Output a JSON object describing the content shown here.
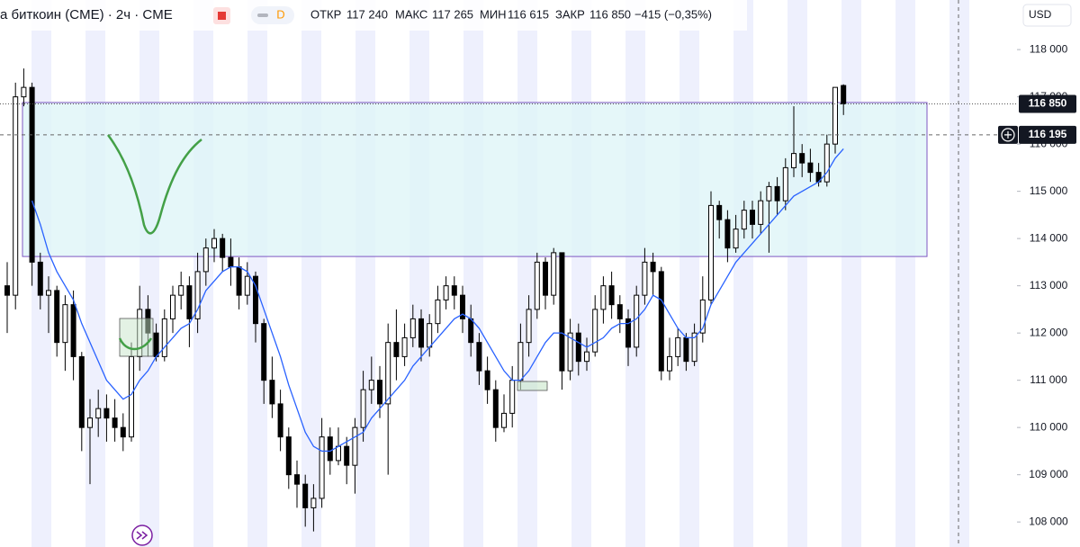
{
  "chart_data": {
    "type": "candlestick",
    "title": "а биткоин (CME) · 2ч · CME",
    "badge": "D",
    "currency": "USD",
    "legend": {
      "open_label": "ОТКР",
      "open": {
        "value": 117240,
        "label": "117 240"
      },
      "high_label": "МАКС",
      "high": {
        "value": 117265,
        "label": "117 265"
      },
      "low_label": "МИН",
      "low": {
        "value": 116615,
        "label": "116 615"
      },
      "close_label": "ЗАКР",
      "close": {
        "value": 116850,
        "label": "116 850"
      },
      "change": {
        "value": -415,
        "label": "−415 (−0,35%)"
      }
    },
    "last_price": {
      "value": 116850,
      "label": "116 850"
    },
    "crosshair_price": {
      "value": 116195,
      "label": "116 195"
    },
    "zone": {
      "top": 116880,
      "bottom": 113620,
      "color": "#dff5f7"
    },
    "ylim": [
      107470,
      119050
    ],
    "yticks": [
      {
        "value": 108000,
        "label": "108 000"
      },
      {
        "value": 109000,
        "label": "109 000"
      },
      {
        "value": 110000,
        "label": "110 000"
      },
      {
        "value": 111000,
        "label": "111 000"
      },
      {
        "value": 112000,
        "label": "112 000"
      },
      {
        "value": 113000,
        "label": "113 000"
      },
      {
        "value": 114000,
        "label": "114 000"
      },
      {
        "value": 115000,
        "label": "115 000"
      },
      {
        "value": 116000,
        "label": "116 000"
      },
      {
        "value": 117000,
        "label": "117 000"
      },
      {
        "value": 118000,
        "label": "118 000"
      }
    ],
    "up_color": "#ffffff",
    "down_color": "#000000",
    "open": [
      113000,
      112800,
      117000,
      117200,
      113500,
      112800,
      112900,
      111800,
      112600,
      111500,
      110000,
      110200,
      110400,
      110200,
      110000,
      109800,
      111500,
      112500,
      112000,
      111500,
      112300,
      112800,
      113000,
      112300,
      113300,
      113800,
      114000,
      113600,
      113400,
      112800,
      113200,
      112200,
      111000,
      110500,
      109800,
      109000,
      108800,
      108300,
      108500,
      109800,
      109300,
      109600,
      109200,
      110000,
      110800,
      111000,
      110500,
      111800,
      111500,
      111900,
      112300,
      111700,
      112200,
      112700,
      113000,
      112800,
      112300,
      111800,
      111200,
      110800,
      110000,
      110300,
      111000,
      111800,
      112500,
      113500,
      112800,
      113700,
      111200,
      112000,
      111400,
      111600,
      112500,
      113000,
      112600,
      112300,
      111700,
      112800,
      113500,
      113300,
      111200,
      111500,
      111900,
      111400,
      112000,
      112700,
      114700,
      114400,
      113800,
      114200,
      114600,
      114300,
      114800,
      115100,
      114800,
      115500,
      115800,
      115600,
      115400,
      115200,
      116000,
      117240
    ],
    "high": [
      113500,
      117300,
      117600,
      117300,
      113700,
      113200,
      113000,
      112800,
      112900,
      111600,
      110600,
      110800,
      110700,
      110600,
      110300,
      111800,
      113000,
      112800,
      112200,
      112500,
      113000,
      113300,
      113200,
      113700,
      114000,
      114200,
      114100,
      114000,
      113600,
      113500,
      113300,
      112300,
      111500,
      110800,
      110000,
      109300,
      109000,
      108800,
      110200,
      110000,
      110000,
      109800,
      110200,
      111200,
      111500,
      111300,
      112200,
      112500,
      112200,
      112600,
      112500,
      112400,
      113000,
      113200,
      113200,
      113000,
      112600,
      112000,
      111500,
      111000,
      110700,
      111300,
      112200,
      112800,
      113700,
      113600,
      113800,
      113700,
      112300,
      112200,
      111900,
      112800,
      113200,
      113300,
      112800,
      112500,
      113000,
      113800,
      113700,
      113400,
      111900,
      112100,
      112000,
      112200,
      113200,
      115000,
      114800,
      114600,
      114500,
      114800,
      114800,
      115000,
      115200,
      115300,
      115700,
      116800,
      116000,
      115900,
      115600,
      116200,
      117200,
      117265
    ],
    "low": [
      112000,
      112500,
      116800,
      113000,
      112500,
      112000,
      111500,
      111200,
      111000,
      109500,
      108800,
      109800,
      109700,
      109700,
      109500,
      109700,
      111200,
      111500,
      111400,
      111400,
      112000,
      112500,
      111700,
      112000,
      113000,
      113500,
      113300,
      113000,
      112500,
      112600,
      111800,
      110500,
      110200,
      109500,
      108700,
      108300,
      107900,
      107800,
      108300,
      109000,
      109200,
      108800,
      108600,
      109700,
      110500,
      110200,
      109000,
      111000,
      111300,
      111700,
      111400,
      111500,
      112000,
      112500,
      112500,
      112000,
      111500,
      110900,
      110500,
      109700,
      109900,
      110000,
      110800,
      111500,
      112300,
      112500,
      112600,
      110800,
      111000,
      111100,
      111200,
      111500,
      112200,
      112300,
      112000,
      111300,
      111500,
      112600,
      112800,
      111000,
      111000,
      111300,
      111200,
      111300,
      111800,
      112600,
      114000,
      113500,
      113700,
      114000,
      114000,
      114100,
      113700,
      114500,
      114600,
      115300,
      115300,
      115200,
      115100,
      115100,
      115800,
      116615
    ],
    "close": [
      112800,
      117000,
      117200,
      113500,
      112800,
      112900,
      111800,
      112600,
      111500,
      110000,
      110200,
      110400,
      110200,
      110000,
      109800,
      111500,
      112500,
      112000,
      111500,
      112300,
      112800,
      113000,
      112300,
      113300,
      113800,
      114000,
      113600,
      113400,
      112800,
      113200,
      112200,
      111000,
      110500,
      109800,
      109000,
      108800,
      108300,
      108500,
      109800,
      109300,
      109600,
      109200,
      110000,
      110800,
      111000,
      110500,
      111800,
      111500,
      111900,
      112300,
      111700,
      112200,
      112700,
      113000,
      112800,
      112300,
      111800,
      111200,
      110800,
      110000,
      110300,
      111000,
      111800,
      112500,
      113500,
      112800,
      113700,
      111200,
      112000,
      111400,
      111600,
      112500,
      113000,
      112600,
      112300,
      111700,
      112800,
      113500,
      113300,
      111200,
      111500,
      111900,
      111400,
      112000,
      112700,
      114700,
      114400,
      113800,
      114200,
      114600,
      114300,
      114800,
      115100,
      114800,
      115500,
      115800,
      115600,
      115400,
      115200,
      116000,
      117200,
      116850
    ],
    "series": [
      {
        "color": "#2962ff",
        "values": [
          null,
          null,
          null,
          114800,
          114300,
          113700,
          113300,
          113000,
          112700,
          112200,
          111800,
          111400,
          111000,
          110800,
          110600,
          110700,
          111000,
          111200,
          111500,
          111700,
          111900,
          112100,
          112200,
          112500,
          112900,
          113100,
          113300,
          113400,
          113400,
          113300,
          113000,
          112500,
          112000,
          111500,
          110900,
          110400,
          109900,
          109600,
          109500,
          109500,
          109600,
          109700,
          109800,
          109900,
          110200,
          110400,
          110600,
          110800,
          111000,
          111300,
          111500,
          111700,
          111900,
          112100,
          112300,
          112400,
          112300,
          112100,
          111800,
          111500,
          111200,
          111000,
          111000,
          111200,
          111500,
          111800,
          112000,
          112000,
          111900,
          111800,
          111700,
          111800,
          111900,
          112100,
          112200,
          112200,
          112300,
          112500,
          112800,
          112700,
          112400,
          112100,
          111900,
          111900,
          112100,
          112600,
          112900,
          113200,
          113500,
          113700,
          113900,
          114100,
          114300,
          114500,
          114700,
          114900,
          115000,
          115100,
          115200,
          115400,
          115700,
          115900
        ]
      }
    ]
  }
}
